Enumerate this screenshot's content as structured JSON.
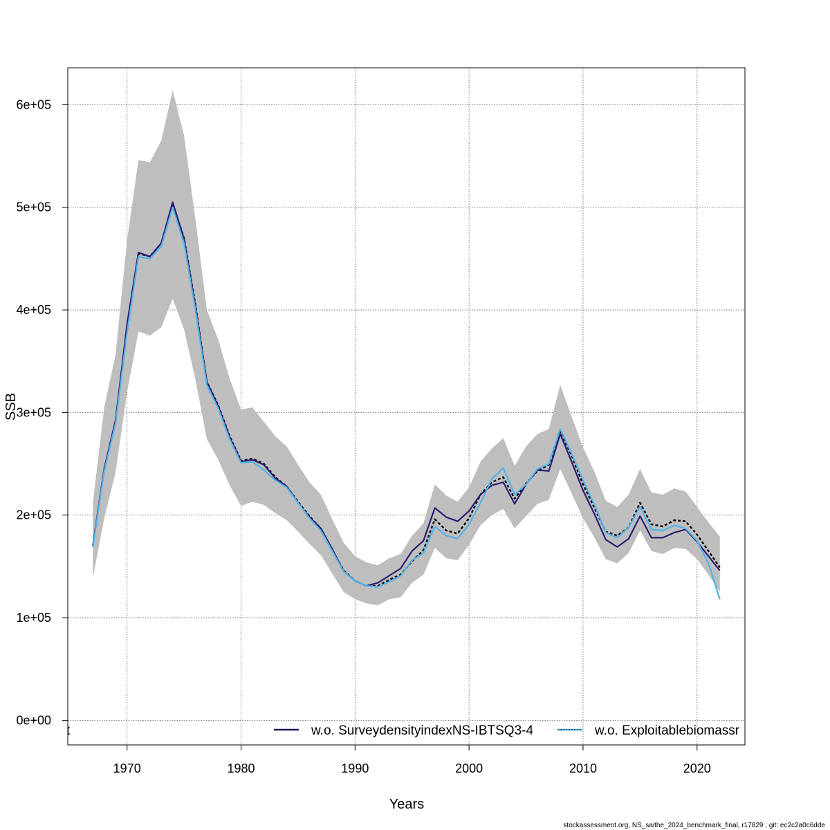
{
  "chart_data": {
    "type": "line",
    "xlabel": "Years",
    "ylabel": "SSB",
    "xlim": [
      1964.8,
      2024.2
    ],
    "ylim": [
      -24000,
      636000
    ],
    "x_ticks": [
      1970,
      1980,
      1990,
      2000,
      2010,
      2020
    ],
    "x_tick_labels": [
      "1970",
      "1980",
      "1990",
      "2000",
      "2010",
      "2020"
    ],
    "y_ticks": [
      0,
      100000,
      200000,
      300000,
      400000,
      500000,
      600000
    ],
    "y_tick_labels": [
      "0e+00",
      "1e+05",
      "2e+05",
      "3e+05",
      "4e+05",
      "5e+05",
      "6e+05"
    ],
    "grid": true,
    "x": [
      1967,
      1968,
      1969,
      1970,
      1971,
      1972,
      1973,
      1974,
      1975,
      1976,
      1977,
      1978,
      1979,
      1980,
      1981,
      1982,
      1983,
      1984,
      1985,
      1986,
      1987,
      1988,
      1989,
      1990,
      1991,
      1992,
      1993,
      1994,
      1995,
      1996,
      1997,
      1998,
      1999,
      2000,
      2001,
      2002,
      2003,
      2004,
      2005,
      2006,
      2007,
      2008,
      2009,
      2010,
      2011,
      2012,
      2013,
      2014,
      2015,
      2016,
      2017,
      2018,
      2019,
      2020,
      2021,
      2022
    ],
    "confidence_band": {
      "color": "#bebebe",
      "upper": [
        212000,
        305000,
        357000,
        468000,
        546000,
        544000,
        565000,
        614000,
        570000,
        488000,
        400000,
        371000,
        333000,
        303000,
        305000,
        291000,
        277000,
        267000,
        249000,
        232000,
        220000,
        196000,
        173000,
        160000,
        154000,
        151000,
        158000,
        162000,
        180000,
        192000,
        230000,
        219000,
        213000,
        227000,
        252000,
        265000,
        275000,
        248000,
        267000,
        279000,
        284000,
        327000,
        296000,
        266000,
        242000,
        214000,
        208000,
        220000,
        245000,
        222000,
        220000,
        226000,
        223000,
        208000,
        193000,
        179000
      ],
      "lower": [
        139000,
        197000,
        242000,
        320000,
        379000,
        375000,
        383000,
        411000,
        381000,
        332000,
        274000,
        254000,
        229000,
        209000,
        213000,
        210000,
        202000,
        195000,
        184000,
        172000,
        161000,
        143000,
        125000,
        118000,
        114000,
        112000,
        118000,
        120000,
        134000,
        142000,
        168000,
        158000,
        156000,
        171000,
        190000,
        200000,
        206000,
        187000,
        199000,
        211000,
        215000,
        245000,
        221000,
        197000,
        178000,
        157000,
        153000,
        163000,
        185000,
        165000,
        162000,
        168000,
        167000,
        157000,
        142000,
        125000
      ]
    },
    "series": [
      {
        "color": "#000000",
        "style": "dashed",
        "values": [
          170000,
          245000,
          292000,
          384000,
          455000,
          452000,
          465000,
          504000,
          470000,
          405000,
          330000,
          307000,
          277000,
          253000,
          255000,
          250000,
          237000,
          228000,
          213000,
          199000,
          187000,
          166000,
          146000,
          136000,
          131000,
          131000,
          137000,
          142000,
          155000,
          166000,
          196000,
          185000,
          182000,
          197000,
          220000,
          232000,
          237000,
          216000,
          231000,
          243000,
          249000,
          281000,
          258000,
          230000,
          207000,
          184000,
          180000,
          188000,
          212000,
          191000,
          189000,
          195000,
          194000,
          181000,
          165000,
          149000
        ]
      },
      {
        "name": "w.o. SurveydensityindexNS-IBTSQ3-4",
        "color": "#2a1b72",
        "style": "solid",
        "values": [
          170000,
          245000,
          293000,
          386000,
          456000,
          452000,
          465000,
          505000,
          469000,
          403000,
          330000,
          306000,
          276000,
          252000,
          254000,
          249000,
          236000,
          228000,
          212000,
          198000,
          187000,
          167000,
          145000,
          136000,
          131000,
          134000,
          141000,
          148000,
          165000,
          175000,
          207000,
          198000,
          194000,
          204000,
          220000,
          229000,
          232000,
          211000,
          230000,
          244000,
          243000,
          279000,
          252000,
          224000,
          201000,
          176000,
          169000,
          177000,
          199000,
          178000,
          178000,
          183000,
          186000,
          174000,
          160000,
          146000
        ]
      },
      {
        "name": "w.o. Exploitablebiomassr",
        "color": "#4fb3e8",
        "style": "solid",
        "values": [
          169000,
          243000,
          290000,
          378000,
          452000,
          450000,
          462000,
          500000,
          465000,
          400000,
          327000,
          304000,
          274000,
          251000,
          252000,
          244000,
          234000,
          227000,
          212000,
          197000,
          185000,
          165000,
          145000,
          136000,
          131000,
          130000,
          135000,
          141000,
          156000,
          163000,
          189000,
          180000,
          177000,
          191000,
          212000,
          235000,
          246000,
          220000,
          230000,
          245000,
          250000,
          284000,
          260000,
          234000,
          210000,
          183000,
          178000,
          188000,
          208000,
          186000,
          185000,
          190000,
          187000,
          175000,
          153000,
          118000
        ]
      }
    ],
    "legend": {
      "placement": "bottom",
      "clipped_left_fragment": "t",
      "entries": [
        "w.o. SurveydensityindexNS-IBTSQ3-4",
        "w.o. Exploitablebiomassr"
      ]
    }
  },
  "footer": "stockassessment.org, NS_saithe_2024_benchmark_final, r17829 , git: ec2c2a0c6dde"
}
